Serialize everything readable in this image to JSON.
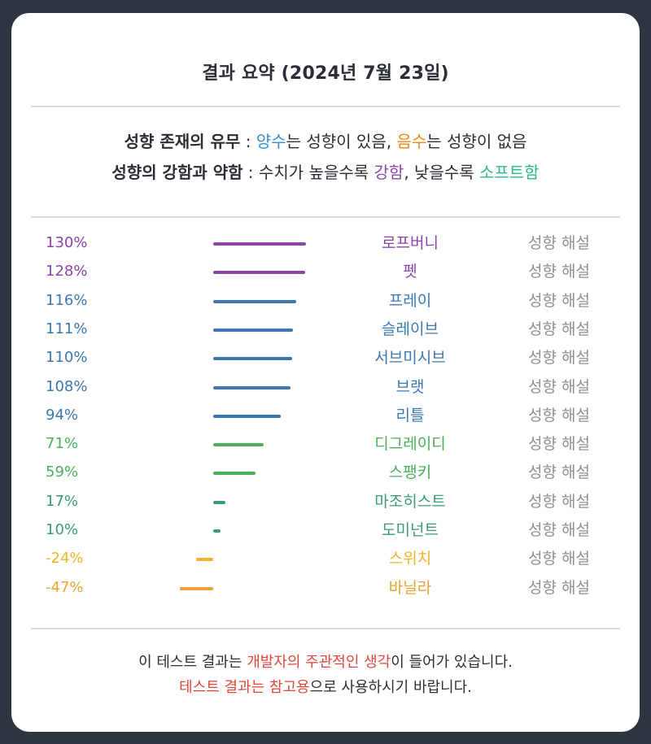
{
  "title": "결과 요약 (2024년 7월 23일)",
  "legend": {
    "line1": {
      "label": "성향 존재의 유무",
      "sep": " : ",
      "positive_word": "양수",
      "positive_text": "는 성향이 있음, ",
      "negative_word": "음수",
      "negative_text": "는 성향이 없음"
    },
    "line2": {
      "label": "성향의 강함과 약함",
      "sep": " : ",
      "text_a": "수치가 높을수록 ",
      "strong_word": "강함",
      "text_b": ", 낮을수록 ",
      "soft_word": "소프트함"
    }
  },
  "results": [
    {
      "percent": "130%",
      "value": 130,
      "name": "로프버니",
      "link": "성향 해설",
      "color": "#8e44ad"
    },
    {
      "percent": "128%",
      "value": 128,
      "name": "펫",
      "link": "성향 해설",
      "color": "#8e44ad"
    },
    {
      "percent": "116%",
      "value": 116,
      "name": "프레이",
      "link": "성향 해설",
      "color": "#3a78b0"
    },
    {
      "percent": "111%",
      "value": 111,
      "name": "슬레이브",
      "link": "성향 해설",
      "color": "#3a78b0"
    },
    {
      "percent": "110%",
      "value": 110,
      "name": "서브미시브",
      "link": "성향 해설",
      "color": "#3a78b0"
    },
    {
      "percent": "108%",
      "value": 108,
      "name": "브랫",
      "link": "성향 해설",
      "color": "#3a78b0"
    },
    {
      "percent": "94%",
      "value": 94,
      "name": "리틀",
      "link": "성향 해설",
      "color": "#3a78b0"
    },
    {
      "percent": "71%",
      "value": 71,
      "name": "디그레이디",
      "link": "성향 해설",
      "color": "#4caf5c"
    },
    {
      "percent": "59%",
      "value": 59,
      "name": "스팽키",
      "link": "성향 해설",
      "color": "#4caf5c"
    },
    {
      "percent": "17%",
      "value": 17,
      "name": "마조히스트",
      "link": "성향 해설",
      "color": "#3b9a7c"
    },
    {
      "percent": "10%",
      "value": 10,
      "name": "도미넌트",
      "link": "성향 해설",
      "color": "#3b9a7c"
    },
    {
      "percent": "-24%",
      "value": -24,
      "name": "스위치",
      "link": "성향 해설",
      "color": "#f0b429"
    },
    {
      "percent": "-47%",
      "value": -47,
      "name": "바닐라",
      "link": "성향 해설",
      "color": "#e8a535"
    }
  ],
  "footer": {
    "line1_a": "이 테스트 결과는 ",
    "line1_red": "개발자의 주관적인 생각",
    "line1_b": "이 들어가 있습니다.",
    "line2_red": "테스트 결과는 참고용",
    "line2_b": "으로 사용하시기 바랍니다."
  }
}
